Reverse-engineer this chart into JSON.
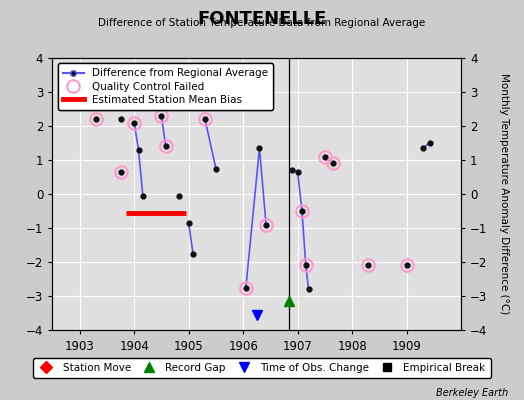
{
  "title": "FONTENELLE",
  "subtitle": "Difference of Station Temperature Data from Regional Average",
  "ylabel_right": "Monthly Temperature Anomaly Difference (°C)",
  "credit": "Berkeley Earth",
  "xlim": [
    1902.5,
    1910.0
  ],
  "ylim": [
    -4,
    4
  ],
  "yticks": [
    -4,
    -3,
    -2,
    -1,
    0,
    1,
    2,
    3,
    4
  ],
  "xticks": [
    1903,
    1904,
    1905,
    1906,
    1907,
    1908,
    1909
  ],
  "bg_color": "#cccccc",
  "plot_bg_color": "#e0e0e0",
  "grid_color": "white",
  "line_color": "#5555ff",
  "marker_color": "#111111",
  "qc_color": "#ff99cc",
  "connected_segments": [
    [
      [
        1904.0,
        2.1
      ],
      [
        1904.08,
        1.3
      ],
      [
        1904.16,
        -0.05
      ]
    ],
    [
      [
        1904.5,
        2.3
      ],
      [
        1904.58,
        1.4
      ]
    ],
    [
      [
        1905.0,
        -0.85
      ],
      [
        1905.08,
        -1.75
      ]
    ],
    [
      [
        1905.3,
        2.2
      ],
      [
        1905.5,
        0.75
      ]
    ],
    [
      [
        1906.05,
        -2.75
      ],
      [
        1906.3,
        1.35
      ],
      [
        1906.42,
        -0.9
      ]
    ],
    [
      [
        1906.9,
        0.7
      ],
      [
        1907.0,
        0.65
      ],
      [
        1907.08,
        -0.5
      ],
      [
        1907.15,
        -2.1
      ],
      [
        1907.2,
        -2.8
      ]
    ],
    [
      [
        1907.5,
        1.1
      ],
      [
        1907.65,
        0.9
      ]
    ],
    [
      [
        1909.3,
        1.35
      ],
      [
        1909.42,
        1.5
      ]
    ]
  ],
  "isolated_points": [
    [
      1903.3,
      2.2
    ],
    [
      1903.75,
      0.65
    ],
    [
      1903.75,
      2.2
    ],
    [
      1904.83,
      -0.05
    ],
    [
      1908.3,
      -2.1
    ],
    [
      1909.0,
      -2.1
    ]
  ],
  "qc_failed_points": [
    [
      1903.3,
      2.2
    ],
    [
      1903.75,
      0.65
    ],
    [
      1904.0,
      2.1
    ],
    [
      1904.5,
      2.3
    ],
    [
      1904.58,
      1.4
    ],
    [
      1905.3,
      2.2
    ],
    [
      1906.42,
      -0.9
    ],
    [
      1906.05,
      -2.75
    ],
    [
      1907.08,
      -0.5
    ],
    [
      1907.15,
      -2.1
    ],
    [
      1907.5,
      1.1
    ],
    [
      1907.65,
      0.9
    ],
    [
      1908.3,
      -2.1
    ],
    [
      1909.0,
      -2.1
    ]
  ],
  "bias_line_x": [
    1903.85,
    1904.95
  ],
  "bias_line_y": [
    -0.55,
    -0.55
  ],
  "vline_x": 1906.85,
  "record_gap_x": 1906.85,
  "record_gap_y": -3.15,
  "time_obs_change_x": 1906.25,
  "time_obs_change_y": -3.55
}
